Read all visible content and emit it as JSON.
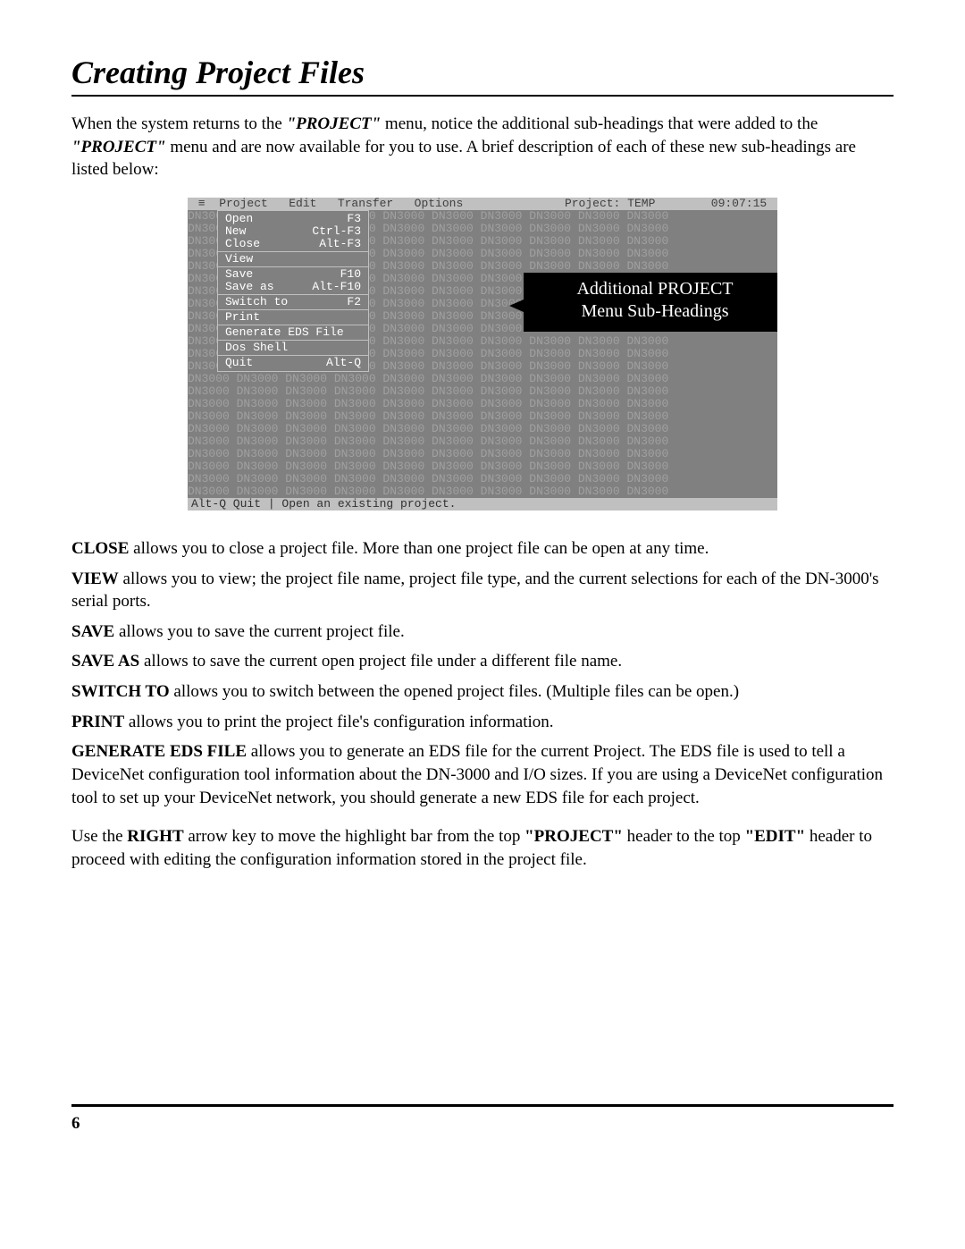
{
  "title": "Creating Project Files",
  "intro": {
    "pre": "When the system returns to the ",
    "em1": "\"PROJECT\"",
    "mid1": " menu, notice the additional sub-headings that were added to the ",
    "em2": "\"PROJECT\"",
    "mid2": " menu and are now available for you to use.  A brief description of each of these new sub-headings are listed below:"
  },
  "dos": {
    "menubar": {
      "items": [
        "Project",
        "Edit",
        "Transfer",
        "Options"
      ],
      "project_label": "Project:",
      "project_name": "TEMP",
      "time": "09:07:15"
    },
    "menu_items": [
      {
        "label": "Open",
        "shortcut": "F3"
      },
      {
        "label": "New",
        "shortcut": "Ctrl-F3"
      },
      {
        "label": "Close",
        "shortcut": "Alt-F3"
      },
      {
        "sep": true
      },
      {
        "label": "View",
        "shortcut": ""
      },
      {
        "sep": true
      },
      {
        "label": "Save",
        "shortcut": "F10"
      },
      {
        "label": "Save as",
        "shortcut": "Alt-F10"
      },
      {
        "sep": true
      },
      {
        "label": "Switch to",
        "shortcut": "F2"
      },
      {
        "sep": true
      },
      {
        "label": "Print",
        "shortcut": ""
      },
      {
        "sep": true
      },
      {
        "label": "Generate EDS File",
        "shortcut": ""
      },
      {
        "sep": true
      },
      {
        "label": "Dos Shell",
        "shortcut": ""
      },
      {
        "sep": true
      },
      {
        "label": "Quit",
        "shortcut": "Alt-Q"
      }
    ],
    "bg_token": "DN3000",
    "bg_rows": 23,
    "bg_cols": 10,
    "status": "Alt-Q Quit | Open an existing project."
  },
  "callout": {
    "line1": "Additional PROJECT",
    "line2": "Menu Sub-Headings"
  },
  "descriptions": [
    {
      "term": "CLOSE",
      "text": " allows you to close a project file.  More than one project file can be open at any time."
    },
    {
      "term": "VIEW",
      "text": " allows you to view;  the project file name,  project file type, and the current selections for each of the DN-3000's serial ports."
    },
    {
      "term": "SAVE",
      "text": " allows you to save the current project file."
    },
    {
      "term": "SAVE AS",
      "text": " allows to save the current open project file under a different file name."
    },
    {
      "term": "SWITCH TO",
      "text": " allows you to switch between the opened project files.  (Multiple files can be open.)"
    },
    {
      "term": "PRINT",
      "text": " allows you to print the project file's configuration information."
    },
    {
      "term": "GENERATE EDS FILE",
      "text": " allows you to generate an EDS file for the current Project.  The EDS file is used to tell a DeviceNet configuration tool information about the DN-3000 and I/O sizes.  If you are using a DeviceNet configuration tool to set up your DeviceNet network, you should generate a new EDS file for each project."
    }
  ],
  "closing": {
    "pre": "Use the ",
    "b1": "RIGHT",
    "mid1": " arrow key to move the highlight bar from the top ",
    "b2": "\"PROJECT\"",
    "mid2": " header to the top ",
    "b3": "\"EDIT\"",
    "mid3": " header to proceed with editing the configuration information stored in the project file."
  },
  "page_number": "6"
}
